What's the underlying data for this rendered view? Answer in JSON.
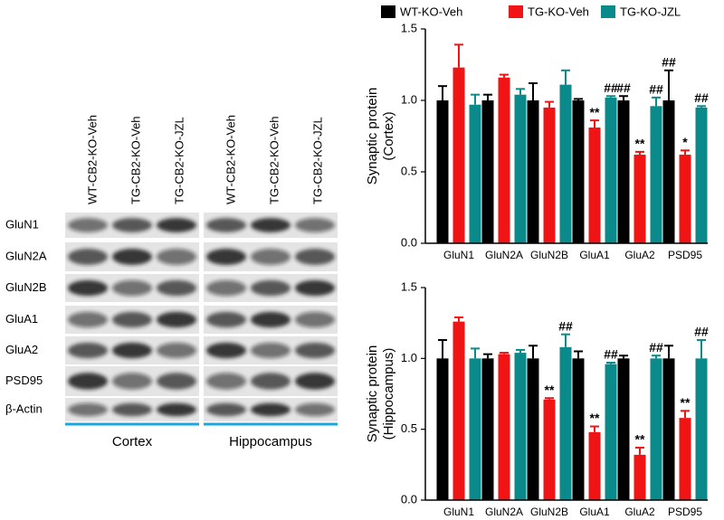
{
  "blot": {
    "row_labels": [
      "GluN1",
      "GluN2A",
      "GluN2B",
      "GluA1",
      "GluA2",
      "PSD95",
      "β-Actin"
    ],
    "panels": [
      {
        "region": "Cortex",
        "columns": [
          "WT-CB2-KO-Veh",
          "TG-CB2-KO-Veh",
          "TG-CB2-KO-JZL"
        ]
      },
      {
        "region": "Hippocampus",
        "columns": [
          "WT-CB2-KO-Veh",
          "TG-CB2-KO-Veh",
          "TG-CB2-KO-JZL"
        ]
      }
    ]
  },
  "chart_data": [
    {
      "type": "bar",
      "ylabel": [
        "Synaptic protein",
        "(Cortex)"
      ],
      "categories": [
        "GluN1",
        "GluN2A",
        "GluN2B",
        "GluA1",
        "GluA2",
        "PSD95"
      ],
      "ylim": [
        0,
        1.5
      ],
      "yticks": [
        {
          "value": 0,
          "label": "0.0"
        },
        0.5,
        {
          "value": 1,
          "label": "1.0"
        },
        1.5
      ],
      "series": [
        {
          "name": "WT-KO-Veh",
          "color": "#000000",
          "values": [
            1.0,
            1.0,
            1.0,
            1.0,
            1.0,
            1.0
          ],
          "errors": [
            0.1,
            0.04,
            0.12,
            0.01,
            0.03,
            0.21
          ],
          "annotations": [
            null,
            null,
            null,
            null,
            "##",
            "##"
          ]
        },
        {
          "name": "TG-KO-Veh",
          "color": "#f01414",
          "values": [
            1.23,
            1.16,
            0.95,
            0.81,
            0.62,
            0.62
          ],
          "errors": [
            0.16,
            0.02,
            0.04,
            0.05,
            0.02,
            0.03
          ],
          "annotations": [
            null,
            null,
            null,
            "**",
            "**",
            "*"
          ]
        },
        {
          "name": "TG-KO-JZL",
          "color": "#0a8a8a",
          "values": [
            0.97,
            1.04,
            1.11,
            1.02,
            0.96,
            0.95
          ],
          "errors": [
            0.07,
            0.04,
            0.1,
            0.01,
            0.06,
            0.01
          ],
          "annotations": [
            null,
            null,
            null,
            "##",
            "##",
            "##"
          ]
        }
      ]
    },
    {
      "type": "bar",
      "ylabel": [
        "Synaptic protein",
        "(Hippocampus)"
      ],
      "categories": [
        "GluN1",
        "GluN2A",
        "GluN2B",
        "GluA1",
        "GluA2",
        "PSD95"
      ],
      "ylim": [
        0,
        1.5
      ],
      "yticks": [
        {
          "value": 0,
          "label": "0.0"
        },
        0.5,
        {
          "value": 1,
          "label": "1.0"
        },
        1.5
      ],
      "series": [
        {
          "color": "#000000",
          "values": [
            1.0,
            1.0,
            1.0,
            1.0,
            1.0,
            1.0
          ],
          "errors": [
            0.13,
            0.03,
            0.09,
            0.05,
            0.02,
            0.09
          ]
        },
        {
          "color": "#f01414",
          "values": [
            1.26,
            1.03,
            0.71,
            0.48,
            0.32,
            0.58
          ],
          "errors": [
            0.03,
            0.01,
            0.01,
            0.04,
            0.05,
            0.05
          ],
          "annotations": [
            null,
            null,
            "**",
            "**",
            "**",
            "**"
          ]
        },
        {
          "color": "#0a8a8a",
          "values": [
            1.0,
            1.04,
            1.08,
            0.96,
            1.0,
            1.0
          ],
          "errors": [
            0.07,
            0.02,
            0.09,
            0.01,
            0.02,
            0.13
          ],
          "annotations": [
            null,
            null,
            "##",
            "##",
            "##",
            "##"
          ]
        }
      ]
    }
  ]
}
